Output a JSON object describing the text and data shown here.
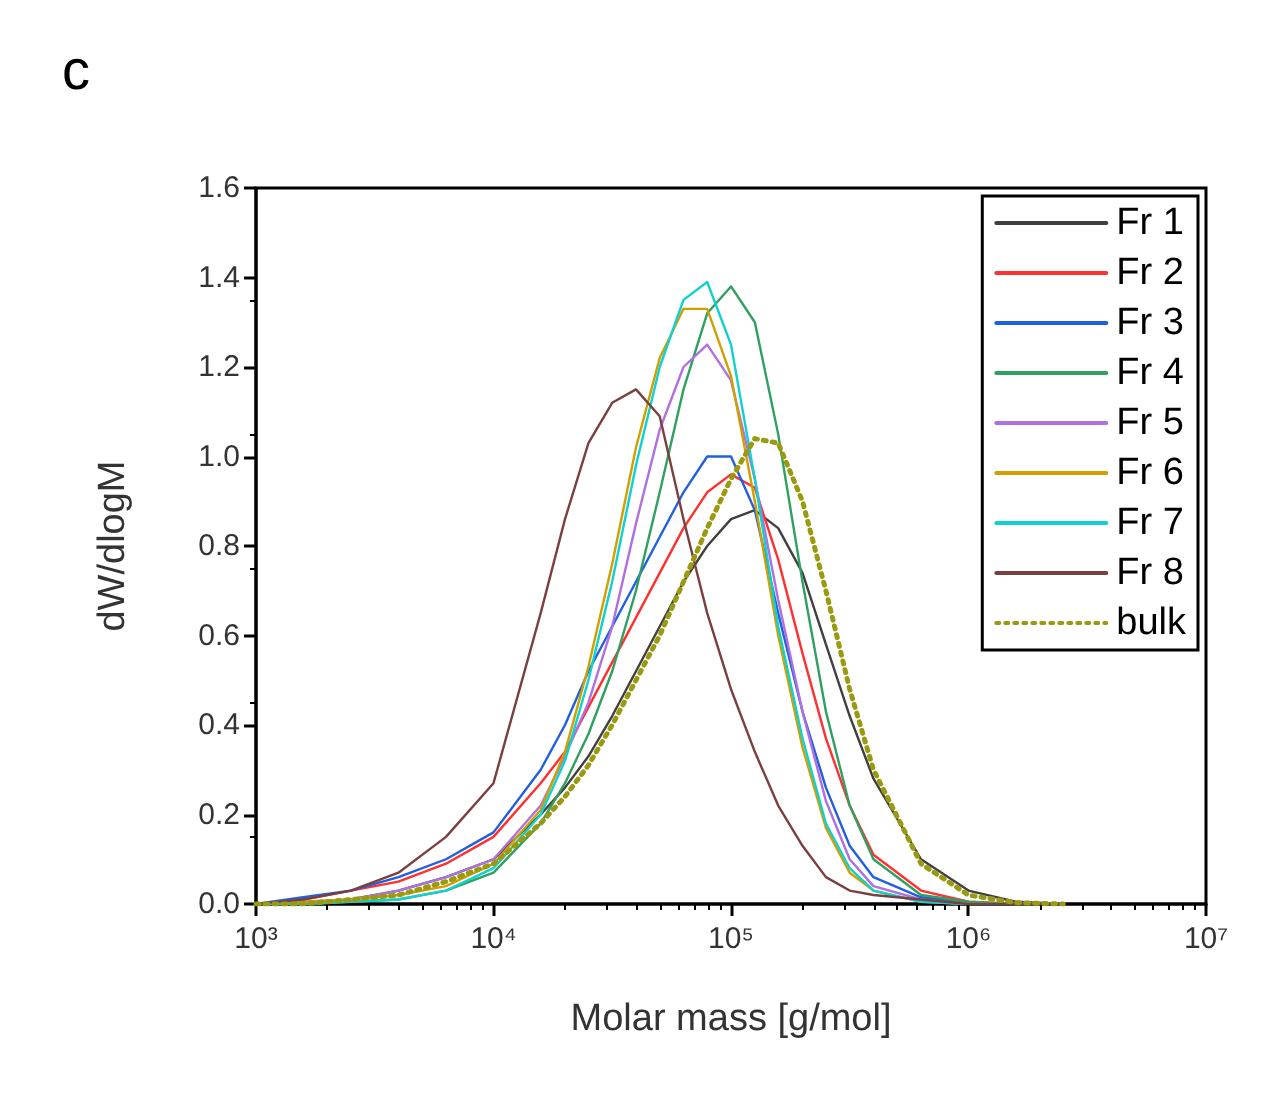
{
  "chart_data": {
    "type": "line",
    "title": "c",
    "xlabel": "Molar mass [g/mol]",
    "ylabel": "dW/dlogM",
    "log": "x",
    "legend": "top right",
    "grid": false,
    "marker": "none",
    "x": [
      1000,
      1580,
      2510,
      3980,
      6310,
      10000,
      15800,
      20000,
      25100,
      31600,
      39800,
      50100,
      63100,
      79400,
      100000,
      126000,
      158000,
      200000,
      251000,
      316000,
      398000,
      631000,
      1000000,
      1580000,
      2510000
    ],
    "xlim": [
      1000,
      10000000
    ],
    "xticks": [
      {
        "value": 1000,
        "label": "10³"
      },
      {
        "value": 10000,
        "label": "10⁴"
      },
      {
        "value": 100000,
        "label": "10⁵"
      },
      {
        "value": 1000000,
        "label": "10⁶"
      },
      {
        "value": 10000000,
        "label": "10⁷"
      }
    ],
    "ylim": [
      0,
      1.6
    ],
    "yticks": [
      {
        "value": 0,
        "label": "0.0"
      },
      {
        "value": 0.2,
        "label": "0.2"
      },
      {
        "value": 0.4,
        "label": "0.4"
      },
      {
        "value": 0.6,
        "label": "0.6"
      },
      {
        "value": 0.8,
        "label": "0.8"
      },
      {
        "value": 1,
        "label": "1.0"
      },
      {
        "value": 1.2,
        "label": "1.2"
      },
      {
        "value": 1.4,
        "label": "1.4"
      },
      {
        "value": 1.6,
        "label": "1.6"
      }
    ],
    "series": [
      {
        "name": "Fr 1",
        "color": "#404040",
        "values": [
          0,
          0,
          0.01,
          0.03,
          0.06,
          0.1,
          0.2,
          0.26,
          0.33,
          0.42,
          0.52,
          0.62,
          0.72,
          0.8,
          0.86,
          0.88,
          0.84,
          0.74,
          0.58,
          0.42,
          0.28,
          0.1,
          0.03,
          0.005,
          0
        ]
      },
      {
        "name": "Fr 2",
        "color": "#ff3030",
        "values": [
          0,
          0.01,
          0.03,
          0.05,
          0.09,
          0.15,
          0.27,
          0.34,
          0.44,
          0.54,
          0.64,
          0.74,
          0.84,
          0.92,
          0.96,
          0.93,
          0.77,
          0.56,
          0.37,
          0.22,
          0.11,
          0.03,
          0.005,
          0,
          0
        ]
      },
      {
        "name": "Fr 3",
        "color": "#2060e0",
        "values": [
          0,
          0.015,
          0.03,
          0.06,
          0.1,
          0.16,
          0.3,
          0.4,
          0.52,
          0.62,
          0.72,
          0.82,
          0.92,
          1.0,
          1.0,
          0.88,
          0.65,
          0.43,
          0.26,
          0.13,
          0.06,
          0.015,
          0.003,
          0,
          0
        ]
      },
      {
        "name": "Fr 4",
        "color": "#30a060",
        "values": [
          0,
          0,
          0.005,
          0.01,
          0.03,
          0.07,
          0.18,
          0.27,
          0.38,
          0.52,
          0.7,
          0.92,
          1.15,
          1.32,
          1.38,
          1.3,
          1.05,
          0.72,
          0.43,
          0.22,
          0.1,
          0.02,
          0.005,
          0,
          0
        ]
      },
      {
        "name": "Fr 5",
        "color": "#b070e0",
        "values": [
          0,
          0.005,
          0.01,
          0.03,
          0.06,
          0.1,
          0.22,
          0.33,
          0.45,
          0.62,
          0.85,
          1.06,
          1.2,
          1.25,
          1.17,
          0.95,
          0.68,
          0.43,
          0.23,
          0.1,
          0.04,
          0.01,
          0,
          null,
          null
        ]
      },
      {
        "name": "Fr 6",
        "color": "#d0a000",
        "values": [
          0,
          0.005,
          0.01,
          0.02,
          0.04,
          0.09,
          0.21,
          0.34,
          0.53,
          0.76,
          1.02,
          1.22,
          1.33,
          1.33,
          1.18,
          0.9,
          0.6,
          0.35,
          0.17,
          0.07,
          0.03,
          0.005,
          0,
          0,
          0
        ]
      },
      {
        "name": "Fr 7",
        "color": "#10d0d0",
        "values": [
          0,
          0,
          0.005,
          0.01,
          0.03,
          0.08,
          0.2,
          0.32,
          0.5,
          0.72,
          0.98,
          1.2,
          1.35,
          1.39,
          1.25,
          0.95,
          0.62,
          0.37,
          0.18,
          0.08,
          0.03,
          0.005,
          0,
          0,
          0
        ]
      },
      {
        "name": "Fr 8",
        "color": "#7a4040",
        "values": [
          0,
          0.01,
          0.03,
          0.07,
          0.15,
          0.27,
          0.65,
          0.86,
          1.03,
          1.12,
          1.15,
          1.09,
          0.86,
          0.65,
          0.48,
          0.34,
          0.22,
          0.13,
          0.06,
          0.03,
          0.02,
          0.01,
          0,
          0,
          0
        ]
      },
      {
        "name": "bulk",
        "color": "#9a9a10",
        "line_style": "dotted",
        "values": [
          0,
          0,
          0.01,
          0.02,
          0.05,
          0.09,
          0.18,
          0.24,
          0.31,
          0.4,
          0.5,
          0.6,
          0.72,
          0.84,
          0.95,
          1.04,
          1.03,
          0.9,
          0.7,
          0.48,
          0.3,
          0.09,
          0.02,
          0.003,
          0
        ]
      }
    ]
  }
}
